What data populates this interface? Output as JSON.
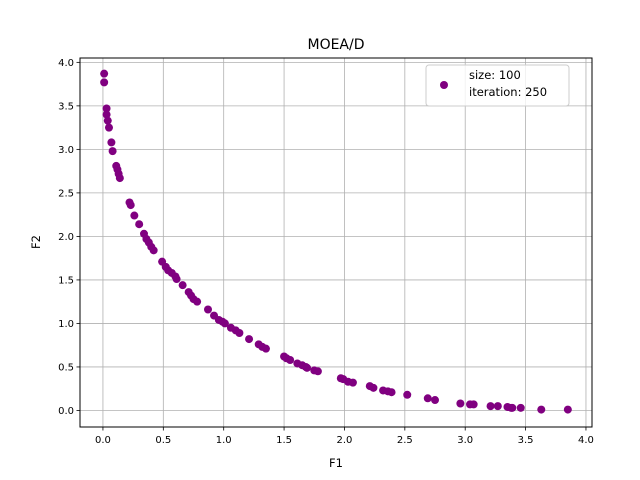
{
  "chart_data": {
    "type": "scatter",
    "title": "MOEA/D",
    "xlabel": "F1",
    "ylabel": "F2",
    "xlim": [
      -0.19,
      4.05
    ],
    "ylim": [
      -0.19,
      4.05
    ],
    "xticks": [
      "0.0",
      "0.5",
      "1.0",
      "1.5",
      "2.0",
      "2.5",
      "3.0",
      "3.5",
      "4.0"
    ],
    "yticks": [
      "0.0",
      "0.5",
      "1.0",
      "1.5",
      "2.0",
      "2.5",
      "3.0",
      "3.5",
      "4.0"
    ],
    "grid": true,
    "legend_position": "top-right",
    "legend_lines": [
      "size: 100",
      "iteration: 250"
    ],
    "marker_color": "#800080",
    "series": [
      {
        "x": [
          0.01,
          0.01,
          0.03,
          0.03,
          0.04,
          0.05,
          0.07,
          0.08,
          0.11,
          0.12,
          0.13,
          0.14,
          0.22,
          0.23,
          0.26,
          0.3,
          0.34,
          0.36,
          0.38,
          0.4,
          0.42,
          0.49,
          0.52,
          0.54,
          0.57,
          0.6,
          0.61,
          0.66,
          0.71,
          0.73,
          0.75,
          0.78,
          0.87,
          0.92,
          0.96,
          0.99,
          1.01,
          1.06,
          1.1,
          1.13,
          1.21,
          1.29,
          1.32,
          1.35,
          1.5,
          1.52,
          1.55,
          1.61,
          1.65,
          1.68,
          1.69,
          1.75,
          1.78,
          1.97,
          1.99,
          2.03,
          2.07,
          2.21,
          2.24,
          2.32,
          2.36,
          2.39,
          2.52,
          2.69,
          2.75,
          2.96,
          3.04,
          3.07,
          3.21,
          3.27,
          3.35,
          3.38,
          3.39,
          3.46,
          3.63,
          3.85
        ],
        "y": [
          3.87,
          3.77,
          3.47,
          3.4,
          3.33,
          3.25,
          3.08,
          2.98,
          2.81,
          2.77,
          2.72,
          2.67,
          2.39,
          2.36,
          2.24,
          2.14,
          2.03,
          1.97,
          1.93,
          1.88,
          1.84,
          1.71,
          1.65,
          1.61,
          1.58,
          1.54,
          1.51,
          1.44,
          1.36,
          1.32,
          1.28,
          1.25,
          1.16,
          1.09,
          1.04,
          1.02,
          1.0,
          0.95,
          0.92,
          0.89,
          0.82,
          0.76,
          0.73,
          0.71,
          0.62,
          0.6,
          0.58,
          0.54,
          0.52,
          0.5,
          0.49,
          0.46,
          0.45,
          0.37,
          0.36,
          0.33,
          0.32,
          0.28,
          0.26,
          0.23,
          0.22,
          0.21,
          0.18,
          0.14,
          0.12,
          0.08,
          0.07,
          0.07,
          0.05,
          0.05,
          0.04,
          0.03,
          0.03,
          0.03,
          0.01,
          0.01
        ]
      }
    ]
  }
}
